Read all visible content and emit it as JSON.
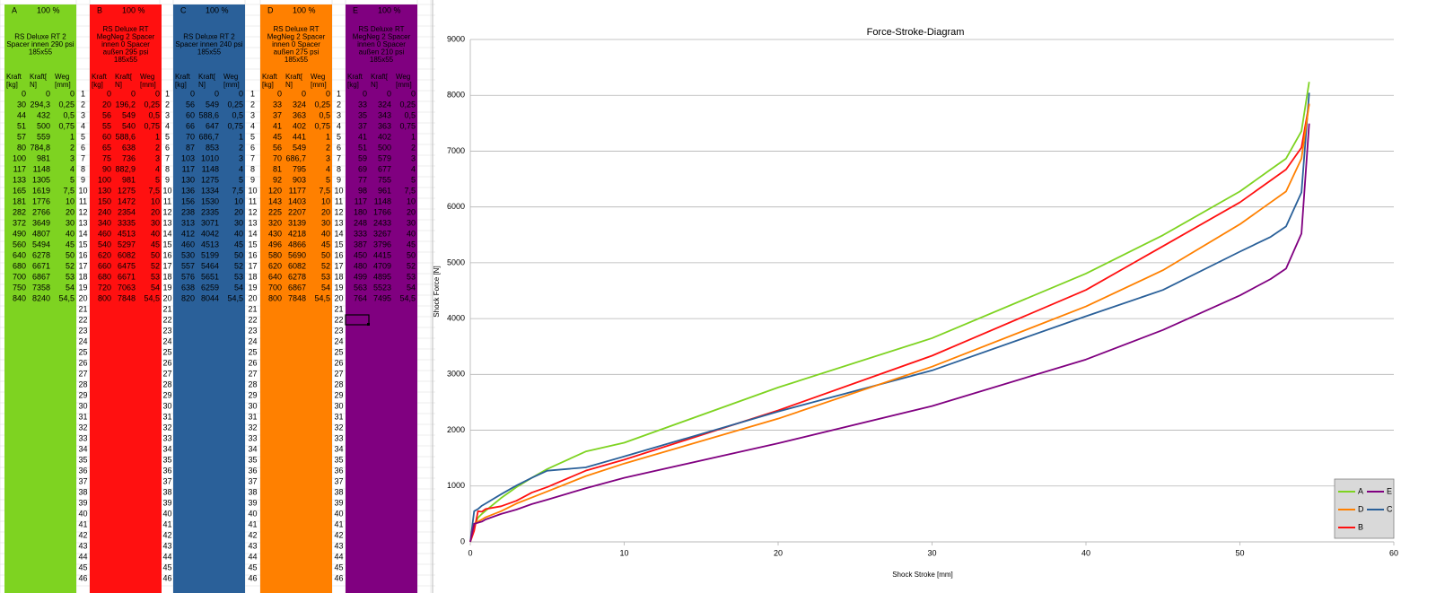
{
  "sheet": {
    "row_numbers": [
      1,
      2,
      3,
      4,
      5,
      6,
      7,
      8,
      9,
      10,
      11,
      12,
      13,
      14,
      15,
      16,
      17,
      18,
      19,
      20,
      21,
      22,
      23,
      24,
      25,
      26,
      27,
      28,
      29,
      30,
      31,
      32,
      33,
      34,
      35,
      36,
      37,
      38,
      39,
      40,
      41,
      42,
      43,
      44,
      45,
      46
    ],
    "blocks": [
      {
        "letter": "A",
        "percent": "100 %",
        "color": "#7ed321",
        "text_color": "#000000",
        "description": [
          "RS Deluxe RT 2",
          "Spacer innen 290 psi",
          "185x55"
        ],
        "columns": [
          [
            "Kraft",
            "[kg]"
          ],
          [
            "Kraft[",
            "N]"
          ],
          [
            "Weg",
            "[mm]"
          ]
        ],
        "rows": [
          [
            "0",
            "0",
            "0"
          ],
          [
            "30",
            "294,3",
            "0,25"
          ],
          [
            "44",
            "432",
            "0,5"
          ],
          [
            "51",
            "500",
            "0,75"
          ],
          [
            "57",
            "559",
            "1"
          ],
          [
            "80",
            "784,8",
            "2"
          ],
          [
            "100",
            "981",
            "3"
          ],
          [
            "117",
            "1148",
            "4"
          ],
          [
            "133",
            "1305",
            "5"
          ],
          [
            "165",
            "1619",
            "7,5"
          ],
          [
            "181",
            "1776",
            "10"
          ],
          [
            "282",
            "2766",
            "20"
          ],
          [
            "372",
            "3649",
            "30"
          ],
          [
            "490",
            "4807",
            "40"
          ],
          [
            "560",
            "5494",
            "45"
          ],
          [
            "640",
            "6278",
            "50"
          ],
          [
            "680",
            "6671",
            "52"
          ],
          [
            "700",
            "6867",
            "53"
          ],
          [
            "750",
            "7358",
            "54"
          ],
          [
            "840",
            "8240",
            "54,5"
          ]
        ]
      },
      {
        "letter": "B",
        "percent": "100 %",
        "color": "#ff1010",
        "text_color": "#000000",
        "description": [
          "RS Deluxe RT",
          "MegNeg 2 Spacer",
          "innen 0 Spacer",
          "außen 295 psi",
          "185x55"
        ],
        "columns": [
          [
            "Kraft",
            "[kg]"
          ],
          [
            "Kraft[",
            "N]"
          ],
          [
            "Weg",
            "[mm]"
          ]
        ],
        "rows": [
          [
            "0",
            "0",
            "0"
          ],
          [
            "20",
            "196,2",
            "0,25"
          ],
          [
            "56",
            "549",
            "0,5"
          ],
          [
            "55",
            "540",
            "0,75"
          ],
          [
            "60",
            "588,6",
            "1"
          ],
          [
            "65",
            "638",
            "2"
          ],
          [
            "75",
            "736",
            "3"
          ],
          [
            "90",
            "882,9",
            "4"
          ],
          [
            "100",
            "981",
            "5"
          ],
          [
            "130",
            "1275",
            "7,5"
          ],
          [
            "150",
            "1472",
            "10"
          ],
          [
            "240",
            "2354",
            "20"
          ],
          [
            "340",
            "3335",
            "30"
          ],
          [
            "460",
            "4513",
            "40"
          ],
          [
            "540",
            "5297",
            "45"
          ],
          [
            "620",
            "6082",
            "50"
          ],
          [
            "660",
            "6475",
            "52"
          ],
          [
            "680",
            "6671",
            "53"
          ],
          [
            "720",
            "7063",
            "54"
          ],
          [
            "800",
            "7848",
            "54,5"
          ]
        ]
      },
      {
        "letter": "C",
        "percent": "100 %",
        "color": "#2a6099",
        "text_color": "#ffffff",
        "description": [
          "RS Deluxe RT 2",
          "Spacer innen 240 psi",
          "185x55"
        ],
        "columns": [
          [
            "Kraft",
            "[kg]"
          ],
          [
            "Kraft[",
            "N]"
          ],
          [
            "Weg",
            "[mm]"
          ]
        ],
        "rows": [
          [
            "0",
            "0",
            "0"
          ],
          [
            "56",
            "549",
            "0,25"
          ],
          [
            "60",
            "588,6",
            "0,5"
          ],
          [
            "66",
            "647",
            "0,75"
          ],
          [
            "70",
            "686,7",
            "1"
          ],
          [
            "87",
            "853",
            "2"
          ],
          [
            "103",
            "1010",
            "3"
          ],
          [
            "117",
            "1148",
            "4"
          ],
          [
            "130",
            "1275",
            "5"
          ],
          [
            "136",
            "1334",
            "7,5"
          ],
          [
            "156",
            "1530",
            "10"
          ],
          [
            "238",
            "2335",
            "20"
          ],
          [
            "313",
            "3071",
            "30"
          ],
          [
            "412",
            "4042",
            "40"
          ],
          [
            "460",
            "4513",
            "45"
          ],
          [
            "530",
            "5199",
            "50"
          ],
          [
            "557",
            "5464",
            "52"
          ],
          [
            "576",
            "5651",
            "53"
          ],
          [
            "638",
            "6259",
            "54"
          ],
          [
            "820",
            "8044",
            "54,5"
          ]
        ]
      },
      {
        "letter": "D",
        "percent": "100 %",
        "color": "#ff8000",
        "text_color": "#000000",
        "description": [
          "RS Deluxe RT",
          "MegNeg 2 Spacer",
          "innen 0 Spacer",
          "außen 275 psi",
          "185x55"
        ],
        "columns": [
          [
            "Kraft",
            "[kg]"
          ],
          [
            "Kraft[",
            "N]"
          ],
          [
            "Weg",
            "[mm]"
          ]
        ],
        "rows": [
          [
            "0",
            "0",
            "0"
          ],
          [
            "33",
            "324",
            "0,25"
          ],
          [
            "37",
            "363",
            "0,5"
          ],
          [
            "41",
            "402",
            "0,75"
          ],
          [
            "45",
            "441",
            "1"
          ],
          [
            "56",
            "549",
            "2"
          ],
          [
            "70",
            "686,7",
            "3"
          ],
          [
            "81",
            "795",
            "4"
          ],
          [
            "92",
            "903",
            "5"
          ],
          [
            "120",
            "1177",
            "7,5"
          ],
          [
            "143",
            "1403",
            "10"
          ],
          [
            "225",
            "2207",
            "20"
          ],
          [
            "320",
            "3139",
            "30"
          ],
          [
            "430",
            "4218",
            "40"
          ],
          [
            "496",
            "4866",
            "45"
          ],
          [
            "580",
            "5690",
            "50"
          ],
          [
            "620",
            "6082",
            "52"
          ],
          [
            "640",
            "6278",
            "53"
          ],
          [
            "700",
            "6867",
            "54"
          ],
          [
            "800",
            "7848",
            "54,5"
          ]
        ]
      },
      {
        "letter": "E",
        "percent": "100 %",
        "color": "#800080",
        "text_color": "#ffffff",
        "description": [
          "RS Deluxe RT",
          "MegNeg 2 Spacer",
          "innen 0 Spacer",
          "außen 210 psi",
          "185x55"
        ],
        "columns": [
          [
            "Kraft",
            "[kg]"
          ],
          [
            "Kraft[",
            "N]"
          ],
          [
            "Weg",
            "[mm]"
          ]
        ],
        "rows": [
          [
            "0",
            "0",
            "0"
          ],
          [
            "33",
            "324",
            "0,25"
          ],
          [
            "35",
            "343",
            "0,5"
          ],
          [
            "37",
            "363",
            "0,75"
          ],
          [
            "41",
            "402",
            "1"
          ],
          [
            "51",
            "500",
            "2"
          ],
          [
            "59",
            "579",
            "3"
          ],
          [
            "69",
            "677",
            "4"
          ],
          [
            "77",
            "755",
            "5"
          ],
          [
            "98",
            "961",
            "7,5"
          ],
          [
            "117",
            "1148",
            "10"
          ],
          [
            "180",
            "1766",
            "20"
          ],
          [
            "248",
            "2433",
            "30"
          ],
          [
            "333",
            "3267",
            "40"
          ],
          [
            "387",
            "3796",
            "45"
          ],
          [
            "450",
            "4415",
            "50"
          ],
          [
            "480",
            "4709",
            "52"
          ],
          [
            "499",
            "4895",
            "53"
          ],
          [
            "563",
            "5523",
            "54"
          ],
          [
            "764",
            "7495",
            "54,5"
          ]
        ]
      }
    ]
  },
  "chart_data": {
    "type": "line",
    "title": "Force-Stroke-Diagram",
    "x_label": "Shock Stroke [mm]",
    "y_label": "Shock Force [N]",
    "x": [
      0,
      0.25,
      0.5,
      0.75,
      1,
      2,
      3,
      4,
      5,
      7.5,
      10,
      20,
      30,
      40,
      45,
      50,
      52,
      53,
      54,
      54.5
    ],
    "series": [
      {
        "name": "A",
        "color": "#7ed321",
        "values": [
          0,
          294.3,
          432,
          500,
          559,
          784.8,
          981,
          1148,
          1305,
          1619,
          1776,
          2766,
          3649,
          4807,
          5494,
          6278,
          6671,
          6867,
          7358,
          8240
        ]
      },
      {
        "name": "B",
        "color": "#ff1010",
        "values": [
          0,
          196.2,
          549,
          540,
          588.6,
          638,
          736,
          882.9,
          981,
          1275,
          1472,
          2354,
          3335,
          4513,
          5297,
          6082,
          6475,
          6671,
          7063,
          7848
        ]
      },
      {
        "name": "C",
        "color": "#2a6099",
        "values": [
          0,
          549,
          588.6,
          647,
          686.7,
          853,
          1010,
          1148,
          1275,
          1334,
          1530,
          2335,
          3071,
          4042,
          4513,
          5199,
          5464,
          5651,
          6259,
          8044
        ]
      },
      {
        "name": "D",
        "color": "#ff8000",
        "values": [
          0,
          324,
          363,
          402,
          441,
          549,
          686.7,
          795,
          903,
          1177,
          1403,
          2207,
          3139,
          4218,
          4866,
          5690,
          6082,
          6278,
          6867,
          7848
        ]
      },
      {
        "name": "E",
        "color": "#800080",
        "values": [
          0,
          324,
          343,
          363,
          402,
          500,
          579,
          677,
          755,
          961,
          1148,
          1766,
          2433,
          3267,
          3796,
          4415,
          4709,
          4895,
          5523,
          7495
        ]
      }
    ],
    "xlim": [
      0,
      60
    ],
    "xticks": [
      0,
      10,
      20,
      30,
      40,
      50,
      60
    ],
    "ylim": [
      0,
      9000
    ],
    "yticks": [
      0,
      1000,
      2000,
      3000,
      4000,
      5000,
      6000,
      7000,
      8000,
      9000
    ],
    "grid": true,
    "legend": "lower-right"
  }
}
